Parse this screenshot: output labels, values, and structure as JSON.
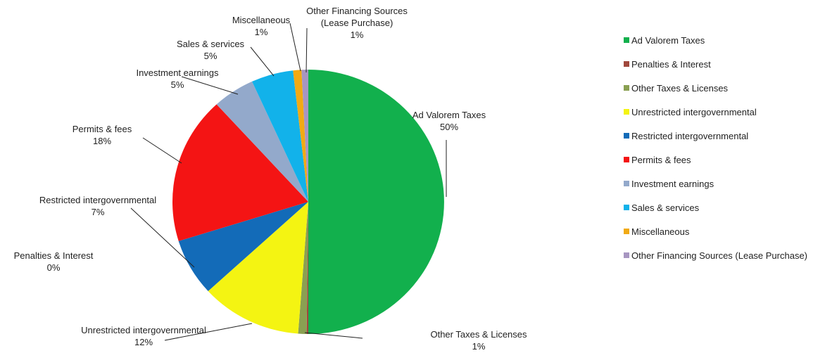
{
  "chart_data": {
    "type": "pie",
    "title": "",
    "legend_position": "right",
    "start": "12 o'clock",
    "direction": "clockwise",
    "slices": [
      {
        "label": "Ad Valorem Taxes",
        "value": 50,
        "value_label": "50%",
        "color": "#12b04d"
      },
      {
        "label": "Penalties & Interest",
        "value": 0.2,
        "value_label": "0%",
        "color": "#a0483c"
      },
      {
        "label": "Other Taxes & Licenses",
        "value": 1,
        "value_label": "1%",
        "color": "#8aa052"
      },
      {
        "label": "Unrestricted intergovernmental",
        "value": 12,
        "value_label": "12%",
        "color": "#f4f412"
      },
      {
        "label": "Restricted intergovernmental",
        "value": 7,
        "value_label": "7%",
        "color": "#136bb8"
      },
      {
        "label": "Permits & fees",
        "value": 18,
        "value_label": "18%",
        "color": "#f41414"
      },
      {
        "label": "Investment earnings",
        "value": 5,
        "value_label": "5%",
        "color": "#93a9cb"
      },
      {
        "label": "Sales & services",
        "value": 5,
        "value_label": "5%",
        "color": "#12b2ea"
      },
      {
        "label": "Miscellaneous",
        "value": 1,
        "value_label": "1%",
        "color": "#f1aa14"
      },
      {
        "label": "Other Financing Sources (Lease Purchase)",
        "value": 0.8,
        "value_label": "1%",
        "color": "#a796c1"
      }
    ],
    "data_labels": [
      {
        "lines": [
          "Ad Valorem  Taxes",
          "50%"
        ]
      },
      {
        "lines": [
          "Penalties  & Interest",
          "0%"
        ]
      },
      {
        "lines": [
          "Other Taxes & Licenses",
          "1%"
        ]
      },
      {
        "lines": [
          "Unrestricted  intergovernmental",
          "12%"
        ]
      },
      {
        "lines": [
          "Restricted  intergovernmental",
          "7%"
        ]
      },
      {
        "lines": [
          "Permits & fees",
          "18%"
        ]
      },
      {
        "lines": [
          "Investment earnings",
          "5%"
        ]
      },
      {
        "lines": [
          "Sales & services",
          "5%"
        ]
      },
      {
        "lines": [
          "Miscellaneous",
          "1%"
        ]
      },
      {
        "lines": [
          "Other Financing Sources",
          "(Lease Purchase)",
          "1%"
        ]
      }
    ]
  }
}
